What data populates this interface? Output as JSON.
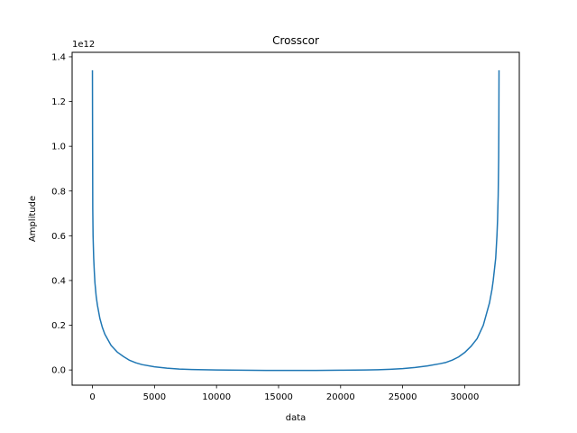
{
  "chart_data": {
    "type": "line",
    "title": "Crosscor",
    "xlabel": "data",
    "ylabel": "Amplitude",
    "y_offset_label": "1e12",
    "xlim": [
      -1638,
      34402
    ],
    "ylim": [
      -0.068,
      1.42
    ],
    "xticks": [
      0,
      5000,
      10000,
      15000,
      20000,
      25000,
      30000
    ],
    "yticks": [
      0.0,
      0.2,
      0.4,
      0.6,
      0.8,
      1.0,
      1.2,
      1.4
    ],
    "xtick_labels": [
      "0",
      "5000",
      "10000",
      "15000",
      "20000",
      "25000",
      "30000"
    ],
    "ytick_labels": [
      "0.0",
      "0.2",
      "0.4",
      "0.6",
      "0.8",
      "1.0",
      "1.2",
      "1.4"
    ],
    "grid": false,
    "colors": {
      "line": "#1f77b4",
      "axes": "#000000"
    },
    "series": [
      {
        "x": [
          0,
          10,
          25,
          50,
          100,
          150,
          200,
          300,
          400,
          600,
          800,
          1000,
          1500,
          2000,
          2500,
          3000,
          3500,
          4000,
          5000,
          6000,
          7000,
          8000,
          9000,
          10000,
          12000,
          14000,
          16000,
          18000,
          20000,
          22000,
          23000,
          24000,
          25000,
          26000,
          27000,
          28000,
          28500,
          29000,
          29500,
          30000,
          30500,
          31000,
          31500,
          31800,
          32000,
          32200,
          32300,
          32400,
          32500,
          32600,
          32650,
          32700,
          32740,
          32755,
          32767
        ],
        "y": [
          1.34,
          1.05,
          0.72,
          0.6,
          0.5,
          0.44,
          0.39,
          0.33,
          0.29,
          0.23,
          0.19,
          0.16,
          0.11,
          0.08,
          0.06,
          0.043,
          0.032,
          0.024,
          0.014,
          0.008,
          0.004,
          0.002,
          0.001,
          0.0,
          -0.001,
          -0.002,
          -0.002,
          -0.002,
          -0.001,
          0.0,
          0.001,
          0.003,
          0.006,
          0.011,
          0.018,
          0.028,
          0.034,
          0.044,
          0.058,
          0.078,
          0.105,
          0.14,
          0.2,
          0.26,
          0.3,
          0.36,
          0.4,
          0.45,
          0.5,
          0.6,
          0.67,
          0.78,
          0.95,
          1.1,
          1.34
        ]
      }
    ]
  }
}
